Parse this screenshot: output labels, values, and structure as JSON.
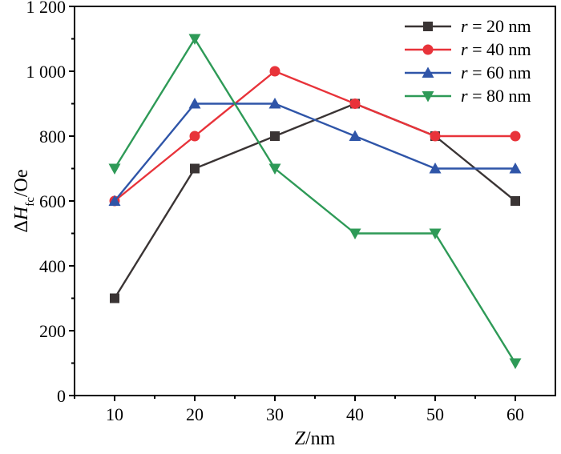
{
  "chart_data": {
    "type": "line",
    "x": [
      10,
      20,
      30,
      40,
      50,
      60
    ],
    "xticks": [
      "10",
      "20",
      "30",
      "40",
      "50",
      "60"
    ],
    "yticks": [
      "0",
      "200",
      "400",
      "600",
      "800",
      "1 000",
      "1 200"
    ],
    "xlabel": {
      "italic": "Z",
      "unit": "/nm"
    },
    "ylabel": {
      "prefix": "Δ",
      "italic": "H",
      "sub": "fc",
      "unit": "/Oe"
    },
    "xlim": [
      5,
      65
    ],
    "ylim": [
      0,
      1200
    ],
    "grid": false,
    "legend_position": "top-right",
    "series": [
      {
        "name": "r = 20 nm",
        "var": "r",
        "rest": " = 20 nm",
        "color": "#3a3434",
        "marker": "square",
        "values": [
          300,
          700,
          800,
          900,
          800,
          600
        ]
      },
      {
        "name": "r = 40 nm",
        "var": "r",
        "rest": " = 40 nm",
        "color": "#e8333a",
        "marker": "circle",
        "values": [
          600,
          800,
          1000,
          900,
          800,
          800
        ]
      },
      {
        "name": "r = 60 nm",
        "var": "r",
        "rest": " = 60 nm",
        "color": "#2f55a8",
        "marker": "triangle-up",
        "values": [
          600,
          900,
          900,
          800,
          700,
          700
        ]
      },
      {
        "name": "r = 80 nm",
        "var": "r",
        "rest": " = 80 nm",
        "color": "#2e9a57",
        "marker": "triangle-down",
        "values": [
          700,
          1100,
          700,
          500,
          500,
          100
        ]
      }
    ]
  }
}
